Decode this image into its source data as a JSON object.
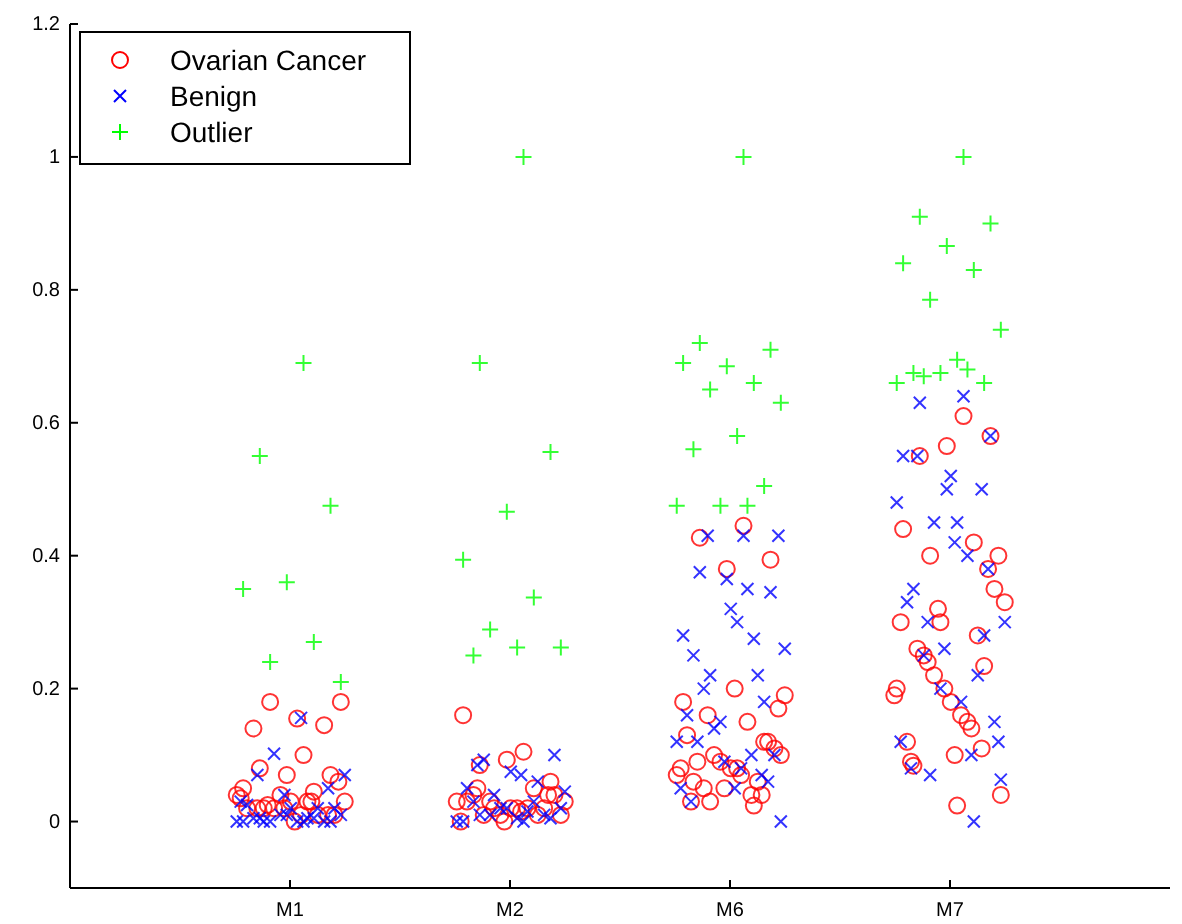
{
  "chart_data": {
    "type": "scatter",
    "categories": [
      "M1",
      "M2",
      "M6",
      "M7"
    ],
    "ylim": [
      -0.1,
      1.2
    ],
    "yticks": [
      0,
      0.2,
      0.4,
      0.6,
      0.8,
      1,
      1.2
    ],
    "grid": false,
    "legend": "top left",
    "series": [
      {
        "name": "Ovarian Cancer",
        "color": "#ff0000",
        "marker": "circle",
        "x": [
          "M1",
          "M1",
          "M1",
          "M1",
          "M1",
          "M1",
          "M1",
          "M1",
          "M1",
          "M1",
          "M1",
          "M1",
          "M1",
          "M1",
          "M1",
          "M1",
          "M1",
          "M1",
          "M1",
          "M1",
          "M1",
          "M1",
          "M1",
          "M1",
          "M1",
          "M1",
          "M1",
          "M1",
          "M1",
          "M1",
          "M2",
          "M2",
          "M2",
          "M2",
          "M2",
          "M2",
          "M2",
          "M2",
          "M2",
          "M2",
          "M2",
          "M2",
          "M2",
          "M2",
          "M2",
          "M2",
          "M2",
          "M2",
          "M2",
          "M2",
          "M2",
          "M2",
          "M2",
          "M2",
          "M2",
          "M2",
          "M6",
          "M6",
          "M6",
          "M6",
          "M6",
          "M6",
          "M6",
          "M6",
          "M6",
          "M6",
          "M6",
          "M6",
          "M6",
          "M6",
          "M6",
          "M6",
          "M6",
          "M6",
          "M6",
          "M6",
          "M6",
          "M6",
          "M6",
          "M6",
          "M6",
          "M6",
          "M6",
          "M6",
          "M6",
          "M6",
          "M6",
          "M6",
          "M7",
          "M7",
          "M7",
          "M7",
          "M7",
          "M7",
          "M7",
          "M7",
          "M7",
          "M7",
          "M7",
          "M7",
          "M7",
          "M7",
          "M7",
          "M7",
          "M7",
          "M7",
          "M7",
          "M7",
          "M7",
          "M7",
          "M7",
          "M7",
          "M7",
          "M7",
          "M7",
          "M7",
          "M7",
          "M7",
          "M7",
          "M7",
          "M7",
          "M7"
        ],
        "values": [
          0.1,
          0.08,
          0.07,
          0.07,
          0.05,
          0.045,
          0.18,
          0.18,
          0.155,
          0.14,
          0.145,
          0.04,
          0.04,
          0.03,
          0.02,
          0.01,
          0.03,
          0.02,
          0.01,
          0.02,
          0.03,
          0.01,
          0.02,
          0.01,
          0.02,
          0.035,
          0.03,
          0.025,
          0.06,
          0.0,
          0.105,
          0.085,
          0.06,
          0.093,
          0.16,
          0.05,
          0.03,
          0.01,
          0.02,
          0.04,
          0.02,
          0.01,
          0.03,
          0.02,
          0.01,
          0.04,
          0.02,
          0.03,
          0.01,
          0.02,
          0.03,
          0.015,
          0.05,
          0.04,
          0.0,
          0.0,
          0.445,
          0.427,
          0.394,
          0.38,
          0.18,
          0.024,
          0.03,
          0.1,
          0.08,
          0.06,
          0.12,
          0.09,
          0.07,
          0.15,
          0.05,
          0.11,
          0.08,
          0.13,
          0.06,
          0.1,
          0.19,
          0.07,
          0.09,
          0.12,
          0.05,
          0.08,
          0.04,
          0.16,
          0.17,
          0.2,
          0.03,
          0.04,
          0.61,
          0.55,
          0.58,
          0.565,
          0.44,
          0.42,
          0.4,
          0.04,
          0.024,
          0.084,
          0.234,
          0.3,
          0.2,
          0.15,
          0.25,
          0.35,
          0.18,
          0.12,
          0.28,
          0.22,
          0.33,
          0.16,
          0.26,
          0.38,
          0.2,
          0.3,
          0.14,
          0.24,
          0.4,
          0.1,
          0.09,
          0.11,
          0.32,
          0.19
        ]
      },
      {
        "name": "Benign",
        "color": "#0000ff",
        "marker": "cross",
        "x": [
          "M1",
          "M1",
          "M1",
          "M1",
          "M1",
          "M1",
          "M1",
          "M1",
          "M1",
          "M1",
          "M1",
          "M1",
          "M1",
          "M1",
          "M1",
          "M1",
          "M1",
          "M1",
          "M1",
          "M1",
          "M1",
          "M1",
          "M1",
          "M1",
          "M1",
          "M1",
          "M2",
          "M2",
          "M2",
          "M2",
          "M2",
          "M2",
          "M2",
          "M2",
          "M2",
          "M2",
          "M2",
          "M2",
          "M2",
          "M2",
          "M2",
          "M2",
          "M2",
          "M2",
          "M2",
          "M2",
          "M2",
          "M2",
          "M2",
          "M6",
          "M6",
          "M6",
          "M6",
          "M6",
          "M6",
          "M6",
          "M6",
          "M6",
          "M6",
          "M6",
          "M6",
          "M6",
          "M6",
          "M6",
          "M6",
          "M6",
          "M6",
          "M6",
          "M6",
          "M6",
          "M6",
          "M6",
          "M6",
          "M6",
          "M6",
          "M6",
          "M6",
          "M6",
          "M6",
          "M6",
          "M6",
          "M7",
          "M7",
          "M7",
          "M7",
          "M7",
          "M7",
          "M7",
          "M7",
          "M7",
          "M7",
          "M7",
          "M7",
          "M7",
          "M7",
          "M7",
          "M7",
          "M7",
          "M7",
          "M7",
          "M7",
          "M7",
          "M7",
          "M7",
          "M7",
          "M7",
          "M7",
          "M7",
          "M7",
          "M7",
          "M7",
          "M7",
          "M7"
        ],
        "values": [
          0.0,
          0.005,
          0.0,
          0.01,
          0.0,
          0.005,
          0.0,
          0.01,
          0.0,
          0.005,
          0.0,
          0.01,
          0.0,
          0.005,
          0.0,
          0.02,
          0.02,
          0.025,
          0.02,
          0.102,
          0.07,
          0.156,
          0.07,
          0.05,
          0.04,
          0.03,
          0.0,
          0.01,
          0.005,
          0.02,
          0.0,
          0.03,
          0.01,
          0.02,
          0.005,
          0.03,
          0.01,
          0.02,
          0.0,
          0.015,
          0.093,
          0.1,
          0.075,
          0.05,
          0.06,
          0.04,
          0.045,
          0.07,
          0.085,
          0.43,
          0.375,
          0.345,
          0.365,
          0.28,
          0.275,
          0.22,
          0.0,
          0.3,
          0.25,
          0.18,
          0.15,
          0.12,
          0.35,
          0.2,
          0.1,
          0.32,
          0.16,
          0.22,
          0.14,
          0.26,
          0.08,
          0.12,
          0.06,
          0.09,
          0.05,
          0.1,
          0.43,
          0.43,
          0.05,
          0.03,
          0.07,
          0.64,
          0.63,
          0.58,
          0.5,
          0.55,
          0.0,
          0.07,
          0.063,
          0.45,
          0.35,
          0.28,
          0.2,
          0.48,
          0.4,
          0.25,
          0.15,
          0.52,
          0.33,
          0.22,
          0.45,
          0.3,
          0.18,
          0.55,
          0.38,
          0.26,
          0.12,
          0.1,
          0.3,
          0.12,
          0.42,
          0.08,
          0.5
        ]
      },
      {
        "name": "Outlier",
        "color": "#00ff00",
        "marker": "plus",
        "x": [
          "M1",
          "M1",
          "M1",
          "M1",
          "M1",
          "M1",
          "M1",
          "M1",
          "M2",
          "M2",
          "M2",
          "M2",
          "M2",
          "M2",
          "M2",
          "M2",
          "M2",
          "M2",
          "M6",
          "M6",
          "M6",
          "M6",
          "M6",
          "M6",
          "M6",
          "M6",
          "M6",
          "M6",
          "M6",
          "M6",
          "M6",
          "M6",
          "M7",
          "M7",
          "M7",
          "M7",
          "M7",
          "M7",
          "M7",
          "M7",
          "M7",
          "M7",
          "M7",
          "M7",
          "M7",
          "M7",
          "M7"
        ],
        "values": [
          0.69,
          0.55,
          0.475,
          0.36,
          0.35,
          0.27,
          0.24,
          0.21,
          1.0,
          0.69,
          0.556,
          0.466,
          0.394,
          0.337,
          0.289,
          0.262,
          0.262,
          0.25,
          1.0,
          0.72,
          0.71,
          0.685,
          0.69,
          0.66,
          0.65,
          0.63,
          0.58,
          0.56,
          0.505,
          0.475,
          0.475,
          0.475,
          1.0,
          0.91,
          0.9,
          0.866,
          0.84,
          0.83,
          0.785,
          0.74,
          0.695,
          0.675,
          0.66,
          0.675,
          0.66,
          0.68,
          0.67
        ]
      }
    ]
  }
}
